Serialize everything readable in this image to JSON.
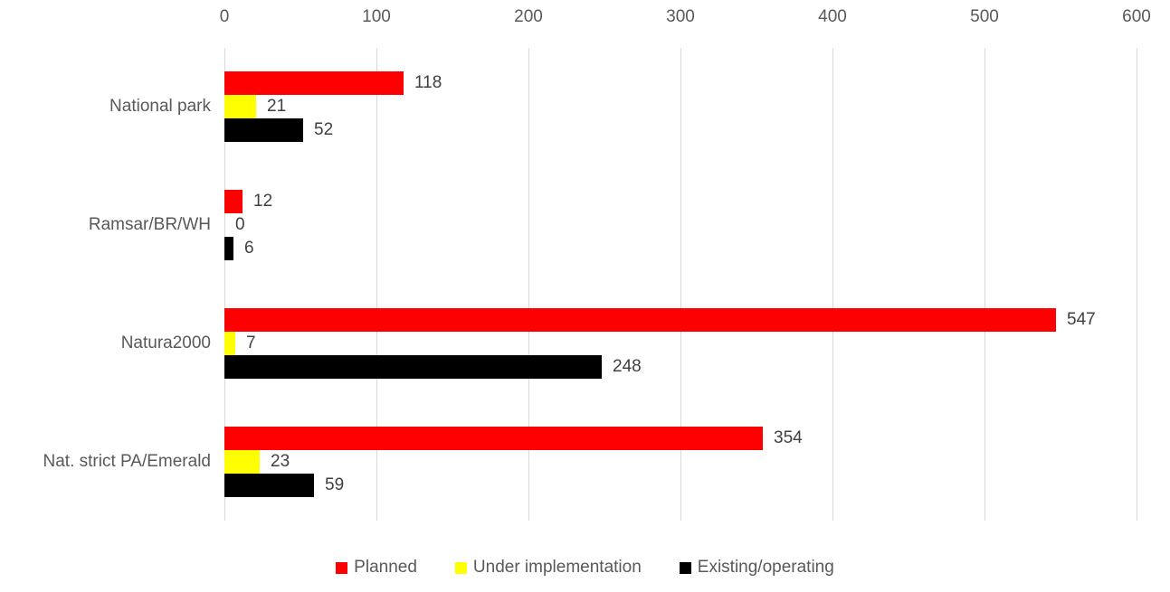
{
  "chart_data": {
    "type": "bar",
    "orientation": "horizontal",
    "title": "",
    "xlabel": "",
    "ylabel": "",
    "categories": [
      "National park",
      "Ramsar/BR/WH",
      "Natura2000",
      "Nat. strict PA/Emerald"
    ],
    "series": [
      {
        "name": "Planned",
        "color": "#FF0000",
        "values": [
          118,
          12,
          547,
          354
        ]
      },
      {
        "name": "Under implementation",
        "color": "#FFFF00",
        "values": [
          21,
          0,
          7,
          23
        ]
      },
      {
        "name": "Existing/operating",
        "color": "#000000",
        "values": [
          52,
          6,
          248,
          59
        ]
      }
    ],
    "xlim": [
      0,
      600
    ],
    "x_ticks": [
      0,
      100,
      200,
      300,
      400,
      500,
      600
    ],
    "value_axis_position": "top",
    "grid": true,
    "data_labels": true,
    "legend_position": "bottom"
  },
  "colors": {
    "grid": "#D9D9D9",
    "axis_text": "#595959",
    "data_label_text": "#404040",
    "background": "#FFFFFF"
  }
}
